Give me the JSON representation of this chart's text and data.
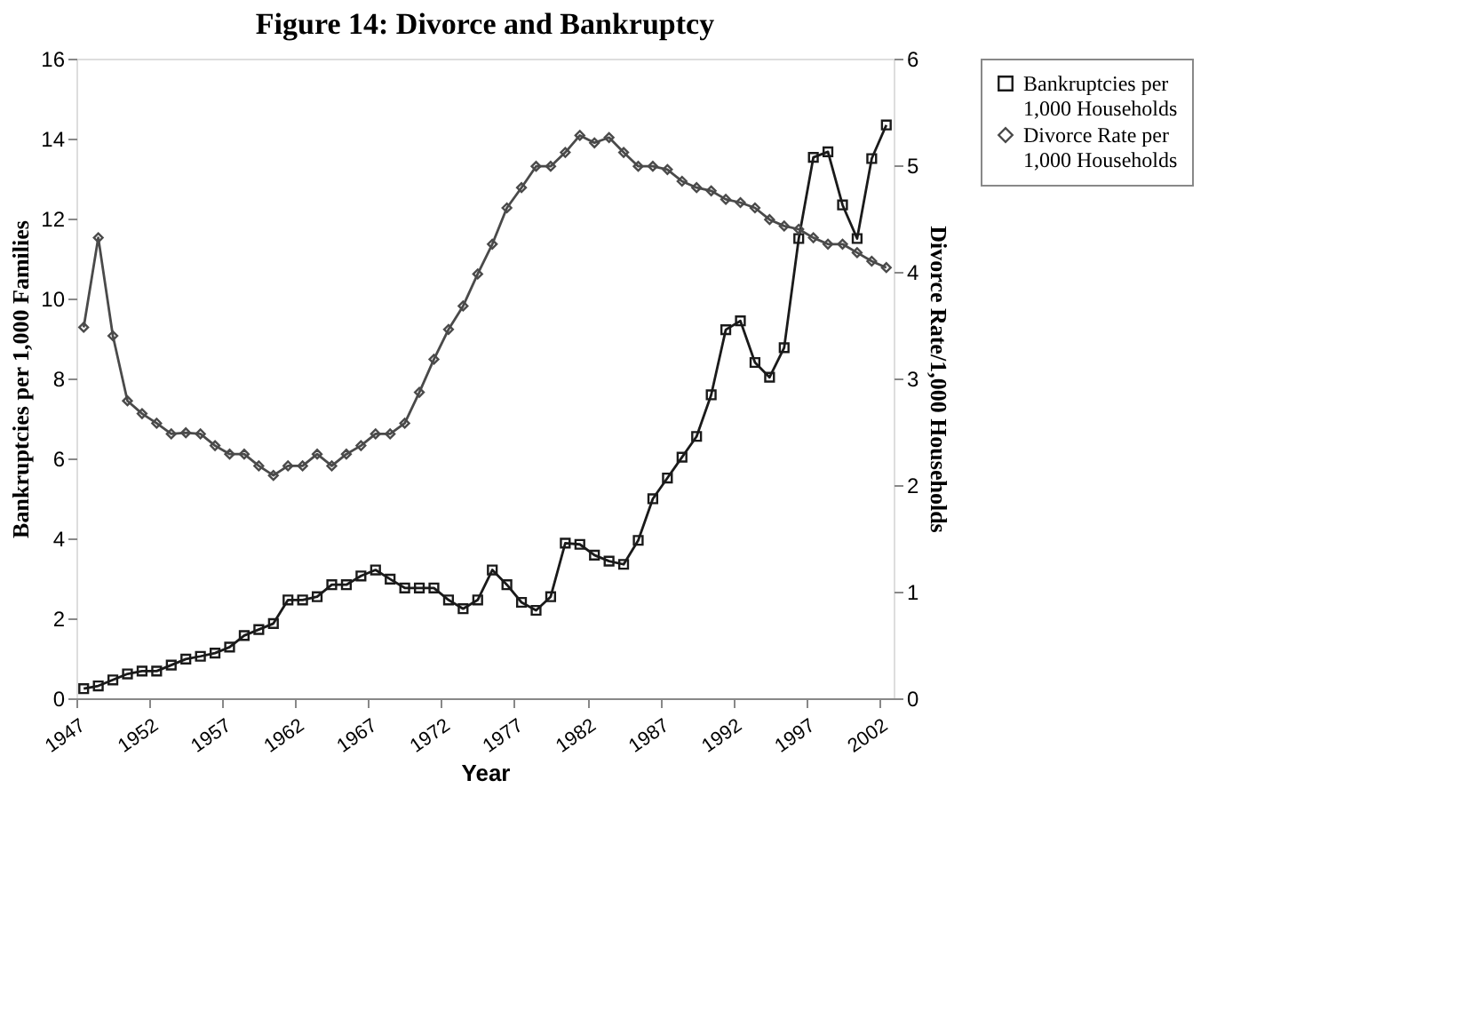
{
  "chart_data": {
    "type": "line",
    "title": "Figure 14: Divorce and Bankruptcy",
    "xlabel": "Year",
    "ylabel": "Bankruptcies per 1,000 Families",
    "y2label": "Divorce Rate/1,000 Households",
    "categories": [
      "1947",
      null,
      null,
      null,
      null,
      "1952",
      null,
      null,
      null,
      null,
      "1957",
      null,
      null,
      null,
      null,
      "1962",
      null,
      null,
      null,
      null,
      "1967",
      null,
      null,
      null,
      null,
      "1972",
      null,
      null,
      null,
      null,
      "1977",
      null,
      null,
      null,
      null,
      "1982",
      null,
      null,
      null,
      null,
      "1987",
      null,
      null,
      null,
      null,
      "1992",
      null,
      null,
      null,
      null,
      "1997",
      null,
      null,
      null,
      null,
      "2002"
    ],
    "series": [
      {
        "name": "Bankruptcies per 1,000 Households",
        "color": "#1a1a1a",
        "marker": "square",
        "values": [
          0.24,
          0.31,
          0.46,
          0.61,
          0.68,
          0.68,
          0.83,
          0.98,
          1.05,
          1.13,
          1.28,
          1.57,
          1.72,
          1.87,
          2.46,
          2.46,
          2.54,
          2.84,
          2.84,
          3.06,
          3.21,
          2.98,
          2.76,
          2.76,
          2.76,
          2.46,
          2.24,
          2.46,
          3.21,
          2.84,
          2.4,
          2.2,
          2.54,
          3.88,
          3.85,
          3.58,
          3.43,
          3.35,
          3.95,
          4.99,
          5.51,
          6.03,
          6.55,
          7.59,
          9.22,
          9.44,
          8.4,
          8.03,
          8.77,
          11.5,
          13.53,
          13.67,
          12.34,
          11.5,
          13.5,
          14.34
        ]
      },
      {
        "name": "Divorce Rate per 1,000 Households",
        "color": "#4a4a4a",
        "marker": "diamond",
        "axis": "y2",
        "values": [
          3.48,
          4.32,
          3.4,
          2.79,
          2.67,
          2.58,
          2.48,
          2.49,
          2.48,
          2.37,
          2.29,
          2.29,
          2.18,
          2.09,
          2.18,
          2.18,
          2.29,
          2.18,
          2.29,
          2.37,
          2.48,
          2.48,
          2.58,
          2.87,
          3.18,
          3.46,
          3.68,
          3.98,
          4.26,
          4.6,
          4.79,
          4.99,
          4.99,
          5.12,
          5.28,
          5.21,
          5.26,
          5.12,
          4.99,
          4.99,
          4.96,
          4.85,
          4.79,
          4.76,
          4.68,
          4.65,
          4.6,
          4.49,
          4.43,
          4.4,
          4.32,
          4.26,
          4.26,
          4.18,
          4.1,
          4.04
        ]
      }
    ],
    "ylim": [
      0,
      16
    ],
    "yticks": [
      0,
      2,
      4,
      6,
      8,
      10,
      12,
      14,
      16
    ],
    "y2lim": [
      0,
      6
    ],
    "y2ticks": [
      0,
      1,
      2,
      3,
      4,
      5,
      6
    ],
    "grid": false,
    "legend": "right",
    "line_style": "solid"
  }
}
